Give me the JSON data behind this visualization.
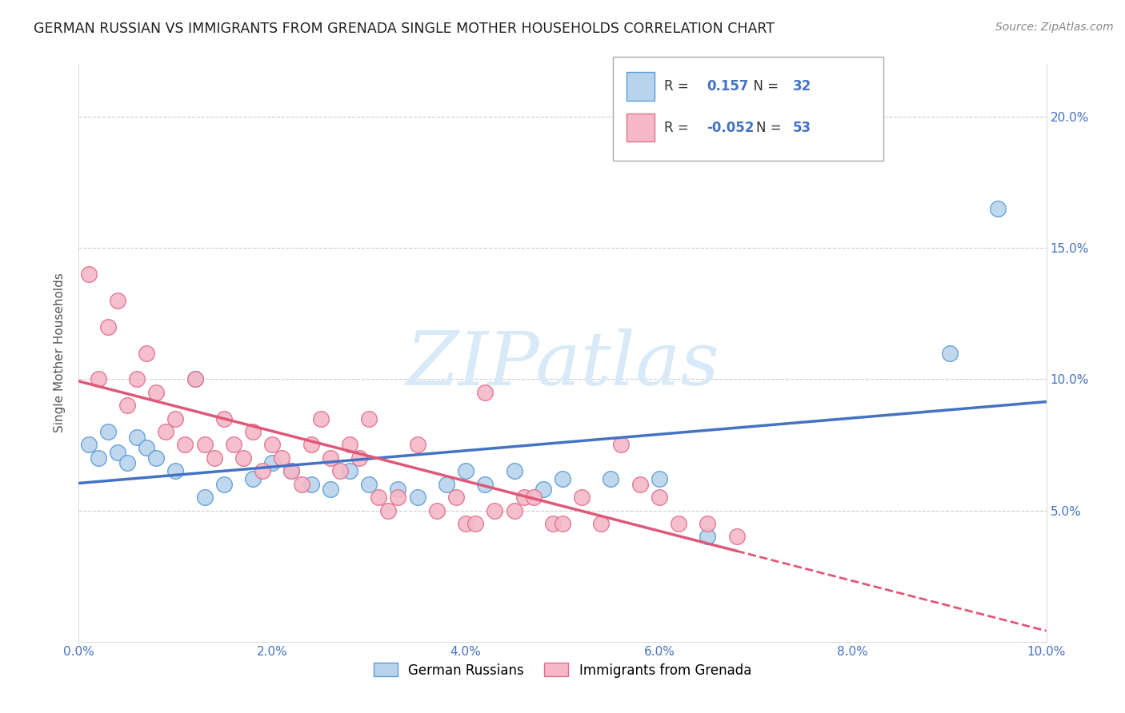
{
  "title": "GERMAN RUSSIAN VS IMMIGRANTS FROM GRENADA SINGLE MOTHER HOUSEHOLDS CORRELATION CHART",
  "source": "Source: ZipAtlas.com",
  "ylabel": "Single Mother Households",
  "xlim": [
    0.0,
    0.1
  ],
  "ylim": [
    0.0,
    0.22
  ],
  "legend_blue_label": "German Russians",
  "legend_pink_label": "Immigrants from Grenada",
  "R_blue": 0.157,
  "N_blue": 32,
  "R_pink": -0.052,
  "N_pink": 53,
  "color_blue_fill": "#b8d4ed",
  "color_blue_edge": "#5b9bd5",
  "color_pink_fill": "#f4b8c8",
  "color_pink_edge": "#e07090",
  "color_blue_line": "#4472c4",
  "color_pink_line": "#e05878",
  "watermark_color": "#d8eaf8",
  "blue_scatter_x": [
    0.001,
    0.002,
    0.003,
    0.004,
    0.005,
    0.006,
    0.007,
    0.008,
    0.01,
    0.012,
    0.013,
    0.015,
    0.018,
    0.02,
    0.022,
    0.024,
    0.026,
    0.028,
    0.03,
    0.033,
    0.035,
    0.038,
    0.04,
    0.042,
    0.045,
    0.048,
    0.05,
    0.055,
    0.06,
    0.065,
    0.09,
    0.095
  ],
  "blue_scatter_y": [
    0.075,
    0.07,
    0.08,
    0.072,
    0.068,
    0.078,
    0.074,
    0.07,
    0.065,
    0.1,
    0.055,
    0.06,
    0.062,
    0.068,
    0.065,
    0.06,
    0.058,
    0.065,
    0.06,
    0.058,
    0.055,
    0.06,
    0.065,
    0.06,
    0.065,
    0.058,
    0.062,
    0.062,
    0.062,
    0.04,
    0.11,
    0.165
  ],
  "pink_scatter_x": [
    0.001,
    0.002,
    0.003,
    0.004,
    0.005,
    0.006,
    0.007,
    0.008,
    0.009,
    0.01,
    0.011,
    0.012,
    0.013,
    0.014,
    0.015,
    0.016,
    0.017,
    0.018,
    0.019,
    0.02,
    0.021,
    0.022,
    0.023,
    0.024,
    0.025,
    0.026,
    0.027,
    0.028,
    0.029,
    0.03,
    0.031,
    0.032,
    0.033,
    0.035,
    0.037,
    0.039,
    0.04,
    0.041,
    0.042,
    0.043,
    0.045,
    0.046,
    0.047,
    0.049,
    0.05,
    0.052,
    0.054,
    0.056,
    0.058,
    0.06,
    0.062,
    0.065,
    0.068
  ],
  "pink_scatter_y": [
    0.14,
    0.1,
    0.12,
    0.13,
    0.09,
    0.1,
    0.11,
    0.095,
    0.08,
    0.085,
    0.075,
    0.1,
    0.075,
    0.07,
    0.085,
    0.075,
    0.07,
    0.08,
    0.065,
    0.075,
    0.07,
    0.065,
    0.06,
    0.075,
    0.085,
    0.07,
    0.065,
    0.075,
    0.07,
    0.085,
    0.055,
    0.05,
    0.055,
    0.075,
    0.05,
    0.055,
    0.045,
    0.045,
    0.095,
    0.05,
    0.05,
    0.055,
    0.055,
    0.045,
    0.045,
    0.055,
    0.045,
    0.075,
    0.06,
    0.055,
    0.045,
    0.045,
    0.04
  ]
}
